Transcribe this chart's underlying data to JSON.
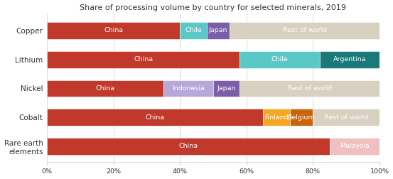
{
  "title": "Share of processing volume by country for selected minerals, 2019",
  "minerals": [
    "Rare earth\nelements",
    "Cobalt",
    "Nickel",
    "Lithium",
    "Copper"
  ],
  "bars": [
    {
      "mineral": "Copper",
      "segments": [
        {
          "label": "China",
          "value": 40,
          "color": "#c0392b"
        },
        {
          "label": "Chile",
          "value": 8,
          "color": "#5bc8c8"
        },
        {
          "label": "Japan",
          "value": 7,
          "color": "#7b5ea7"
        },
        {
          "label": "Rest of world",
          "value": 45,
          "color": "#d8d0c0"
        }
      ]
    },
    {
      "mineral": "Lithium",
      "segments": [
        {
          "label": "China",
          "value": 58,
          "color": "#c0392b"
        },
        {
          "label": "Chile",
          "value": 24,
          "color": "#5bc8c8"
        },
        {
          "label": "Argentina",
          "value": 18,
          "color": "#1a7a7a"
        }
      ]
    },
    {
      "mineral": "Nickel",
      "segments": [
        {
          "label": "China",
          "value": 35,
          "color": "#c0392b"
        },
        {
          "label": "Indonesia",
          "value": 15,
          "color": "#b8a8d8"
        },
        {
          "label": "Japan",
          "value": 8,
          "color": "#7b5ea7"
        },
        {
          "label": "Rest of world",
          "value": 42,
          "color": "#d8d0c0"
        }
      ]
    },
    {
      "mineral": "Cobalt",
      "segments": [
        {
          "label": "China",
          "value": 65,
          "color": "#c0392b"
        },
        {
          "label": "Finland",
          "value": 8,
          "color": "#f5a623"
        },
        {
          "label": "Belgium",
          "value": 7,
          "color": "#c8650a"
        },
        {
          "label": "Rest of world",
          "value": 20,
          "color": "#d8d0c0"
        }
      ]
    },
    {
      "mineral": "Rare earth\nelements",
      "segments": [
        {
          "label": "China",
          "value": 85,
          "color": "#c0392b"
        },
        {
          "label": "Malaysia",
          "value": 15,
          "color": "#f0c0c0"
        }
      ]
    }
  ],
  "xlim": [
    0,
    100
  ],
  "xtick_labels": [
    "0%",
    "20%",
    "40%",
    "60%",
    "80%",
    "100%"
  ],
  "xtick_values": [
    0,
    20,
    40,
    60,
    80,
    100
  ],
  "bar_height": 0.58,
  "title_fontsize": 8.0,
  "label_fontsize": 6.8,
  "ylabel_fontsize": 7.5,
  "background_color": "#ffffff",
  "text_color": "#333333"
}
